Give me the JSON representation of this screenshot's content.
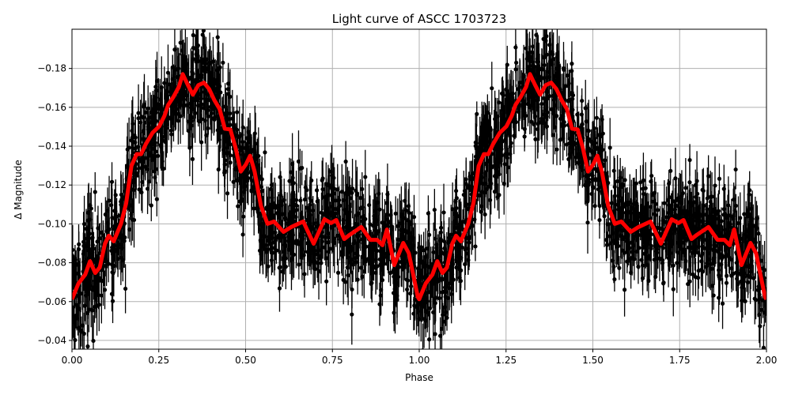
{
  "chart_data": {
    "type": "scatter",
    "title": "Light curve of ASCC 1703723",
    "xlabel": "Phase",
    "ylabel": "Δ Magnitude",
    "xlim": [
      0,
      2
    ],
    "ylim": [
      -0.0355,
      -0.2002
    ],
    "y_inverted": true,
    "grid": true,
    "xticks": [
      "0.00",
      "0.25",
      "0.50",
      "0.75",
      "1.00",
      "1.25",
      "1.50",
      "1.75",
      "2.00"
    ],
    "xtick_values": [
      0,
      0.25,
      0.5,
      0.75,
      1,
      1.25,
      1.5,
      1.75,
      2
    ],
    "yticks": [
      "−0.18",
      "−0.16",
      "−0.14",
      "−0.12",
      "−0.10",
      "−0.08",
      "−0.06",
      "−0.04"
    ],
    "ytick_values": [
      -0.18,
      -0.16,
      -0.14,
      -0.12,
      -0.1,
      -0.08,
      -0.06,
      -0.04
    ],
    "observations": {
      "marker": "dot with error bar",
      "color": "#000000"
    },
    "model_curve": {
      "color": "#ff0000",
      "period_repeats": true,
      "phase": [
        0.0,
        0.019,
        0.038,
        0.052,
        0.067,
        0.08,
        0.095,
        0.106,
        0.12,
        0.141,
        0.156,
        0.171,
        0.186,
        0.199,
        0.213,
        0.232,
        0.251,
        0.266,
        0.277,
        0.292,
        0.308,
        0.319,
        0.334,
        0.348,
        0.364,
        0.38,
        0.395,
        0.41,
        0.425,
        0.44,
        0.456,
        0.471,
        0.486,
        0.501,
        0.513,
        0.526,
        0.544,
        0.563,
        0.582,
        0.609,
        0.632,
        0.666,
        0.696,
        0.727,
        0.746,
        0.761,
        0.784,
        0.799,
        0.833,
        0.859,
        0.879,
        0.894,
        0.907,
        0.928,
        0.954,
        0.97,
        0.996
      ],
      "magnitude": [
        -0.0612,
        -0.0694,
        -0.0739,
        -0.0808,
        -0.0747,
        -0.0776,
        -0.0898,
        -0.0939,
        -0.091,
        -0.1,
        -0.1106,
        -0.1298,
        -0.1359,
        -0.1359,
        -0.1412,
        -0.1469,
        -0.1502,
        -0.1555,
        -0.1612,
        -0.1653,
        -0.1706,
        -0.1771,
        -0.1714,
        -0.1665,
        -0.1714,
        -0.1727,
        -0.1694,
        -0.1637,
        -0.1592,
        -0.149,
        -0.1486,
        -0.1392,
        -0.1269,
        -0.1306,
        -0.1351,
        -0.1269,
        -0.1094,
        -0.1,
        -0.1012,
        -0.0959,
        -0.0984,
        -0.1012,
        -0.0898,
        -0.1024,
        -0.1004,
        -0.102,
        -0.0922,
        -0.0943,
        -0.0984,
        -0.0918,
        -0.0918,
        -0.089,
        -0.0971,
        -0.0788,
        -0.0902,
        -0.0849,
        -0.0624
      ]
    }
  }
}
